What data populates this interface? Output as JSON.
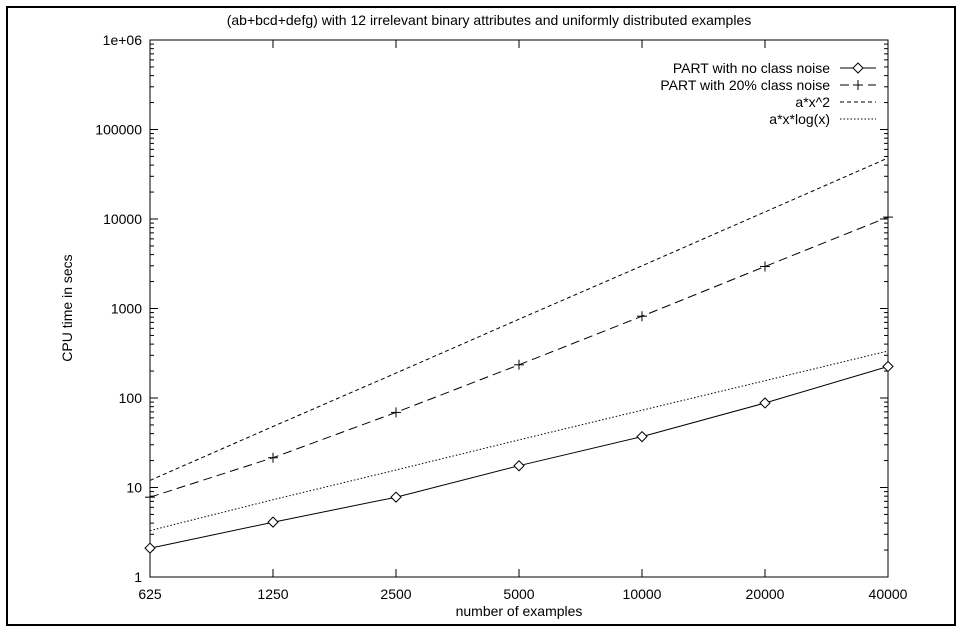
{
  "chart_data": {
    "type": "line",
    "title": "(ab+bcd+defg) with 12 irrelevant binary attributes and uniformly distributed examples",
    "xlabel": "number of examples",
    "ylabel": "CPU time in secs",
    "x_scale": "log",
    "y_scale": "log",
    "xlim": [
      625,
      40000
    ],
    "ylim": [
      1,
      1000000
    ],
    "x_ticks": [
      625,
      1250,
      2500,
      5000,
      10000,
      20000,
      40000
    ],
    "x_tick_labels": [
      "625",
      "1250",
      "2500",
      "5000",
      "10000",
      "20000",
      "40000"
    ],
    "y_ticks": [
      1,
      10,
      100,
      1000,
      10000,
      100000,
      1000000
    ],
    "y_tick_labels": [
      "1",
      "10",
      "100",
      "1000",
      "10000",
      "100000",
      "1e+06"
    ],
    "grid": false,
    "legend_position": "top-right",
    "series": [
      {
        "name": "PART with no class noise",
        "style": "solid",
        "marker": "diamond",
        "x": [
          625,
          1250,
          2500,
          5000,
          10000,
          20000,
          40000
        ],
        "y": [
          2.1,
          4.1,
          7.8,
          17.5,
          37,
          88,
          225
        ]
      },
      {
        "name": "PART with 20% class noise",
        "style": "dashed",
        "marker": "plus",
        "x": [
          625,
          1250,
          2500,
          5000,
          10000,
          20000,
          40000
        ],
        "y": [
          7.8,
          21.5,
          69,
          235,
          820,
          2950,
          10500
        ]
      },
      {
        "name": "a*x^2",
        "style": "short-dashed",
        "marker": "none",
        "x": [
          625,
          1250,
          2500,
          5000,
          10000,
          20000,
          40000
        ],
        "y": [
          12,
          48,
          190,
          760,
          3000,
          12000,
          48000
        ]
      },
      {
        "name": "a*x*log(x)",
        "style": "dotted",
        "marker": "none",
        "x": [
          625,
          1250,
          2500,
          5000,
          10000,
          20000,
          40000
        ],
        "y": [
          3.3,
          7.3,
          15.7,
          34,
          73,
          156,
          335
        ]
      }
    ]
  }
}
